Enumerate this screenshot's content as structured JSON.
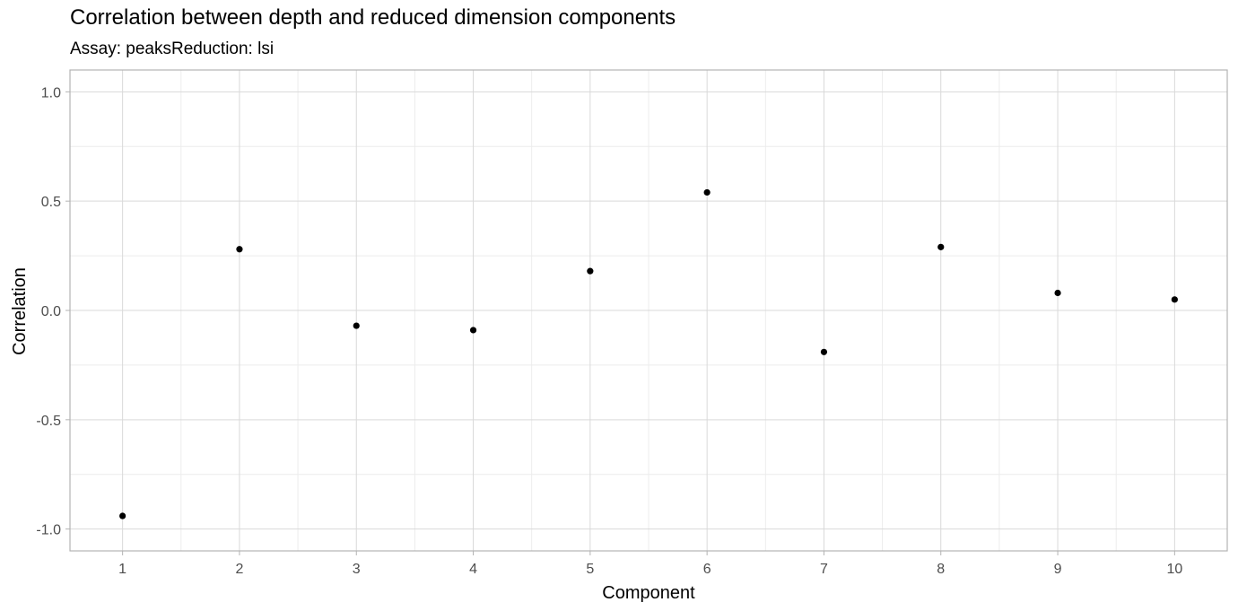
{
  "chart_data": {
    "type": "scatter",
    "title": "Correlation between depth and reduced dimension components",
    "subtitle": "Assay: peaksReduction: lsi",
    "xlabel": "Component",
    "ylabel": "Correlation",
    "x": [
      1,
      2,
      3,
      4,
      5,
      6,
      7,
      8,
      9,
      10
    ],
    "y": [
      -0.94,
      0.28,
      -0.07,
      -0.09,
      0.18,
      0.54,
      -0.19,
      0.29,
      0.08,
      0.05
    ],
    "xlim": [
      0.55,
      10.45
    ],
    "ylim": [
      -1.1,
      1.1
    ],
    "x_ticks": [
      1,
      2,
      3,
      4,
      5,
      6,
      7,
      8,
      9,
      10
    ],
    "x_tick_labels": [
      "1",
      "2",
      "3",
      "4",
      "5",
      "6",
      "7",
      "8",
      "9",
      "10"
    ],
    "y_ticks": [
      -1.0,
      -0.5,
      0.0,
      0.5,
      1.0
    ],
    "y_tick_labels": [
      "-1.0",
      "-0.5",
      "0.0",
      "0.5",
      "1.0"
    ],
    "grid": true,
    "legend": "none",
    "colors": {
      "point": "#000000",
      "grid_major": "#d9d9d9",
      "grid_minor": "#ececec",
      "border": "#b3b3b3",
      "tick_text": "#4d4d4d",
      "label_text": "#000000"
    }
  }
}
